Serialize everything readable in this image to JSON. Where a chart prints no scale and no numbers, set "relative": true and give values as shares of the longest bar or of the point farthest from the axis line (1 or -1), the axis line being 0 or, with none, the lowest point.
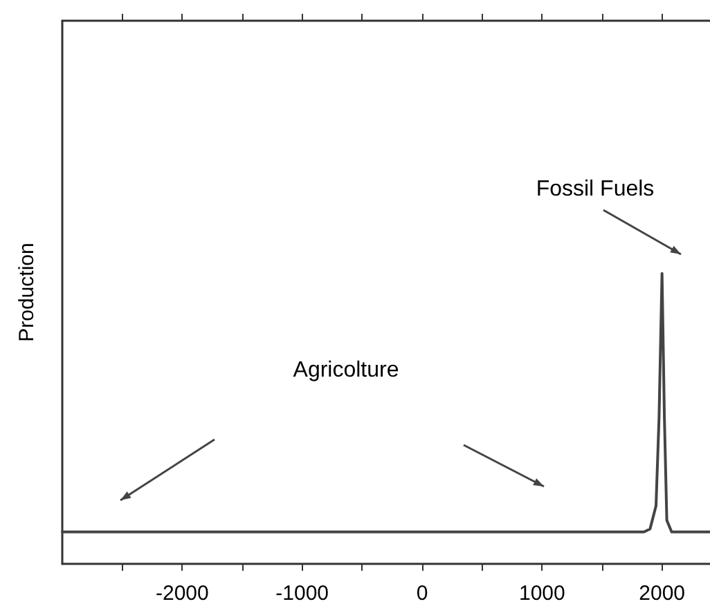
{
  "chart_data": {
    "type": "line",
    "ylabel": "Production",
    "relative": true,
    "x": [
      -3000,
      -2000,
      -1000,
      0,
      1000,
      1850,
      1900,
      1950,
      1975,
      2000,
      2020,
      2040,
      2080,
      2400
    ],
    "series": [
      {
        "color": "#444444",
        "values": [
          0.11,
          0.11,
          0.11,
          0.11,
          0.11,
          0.11,
          0.12,
          0.2,
          0.5,
          1.0,
          0.5,
          0.15,
          0.11,
          0.11
        ]
      }
    ],
    "xlim": [
      -3000,
      2400
    ],
    "xticks": [
      {
        "value": -2500,
        "label": null
      },
      -2000,
      {
        "value": -1500,
        "label": null
      },
      -1000,
      {
        "value": -500,
        "label": null
      },
      0,
      {
        "value": 500,
        "label": null
      },
      1000,
      {
        "value": 1500,
        "label": null
      },
      2000
    ],
    "tick_labels": "x",
    "marker": "none",
    "annotations": [
      "Fossil Fuels",
      "Agricolture"
    ],
    "grid": false
  }
}
